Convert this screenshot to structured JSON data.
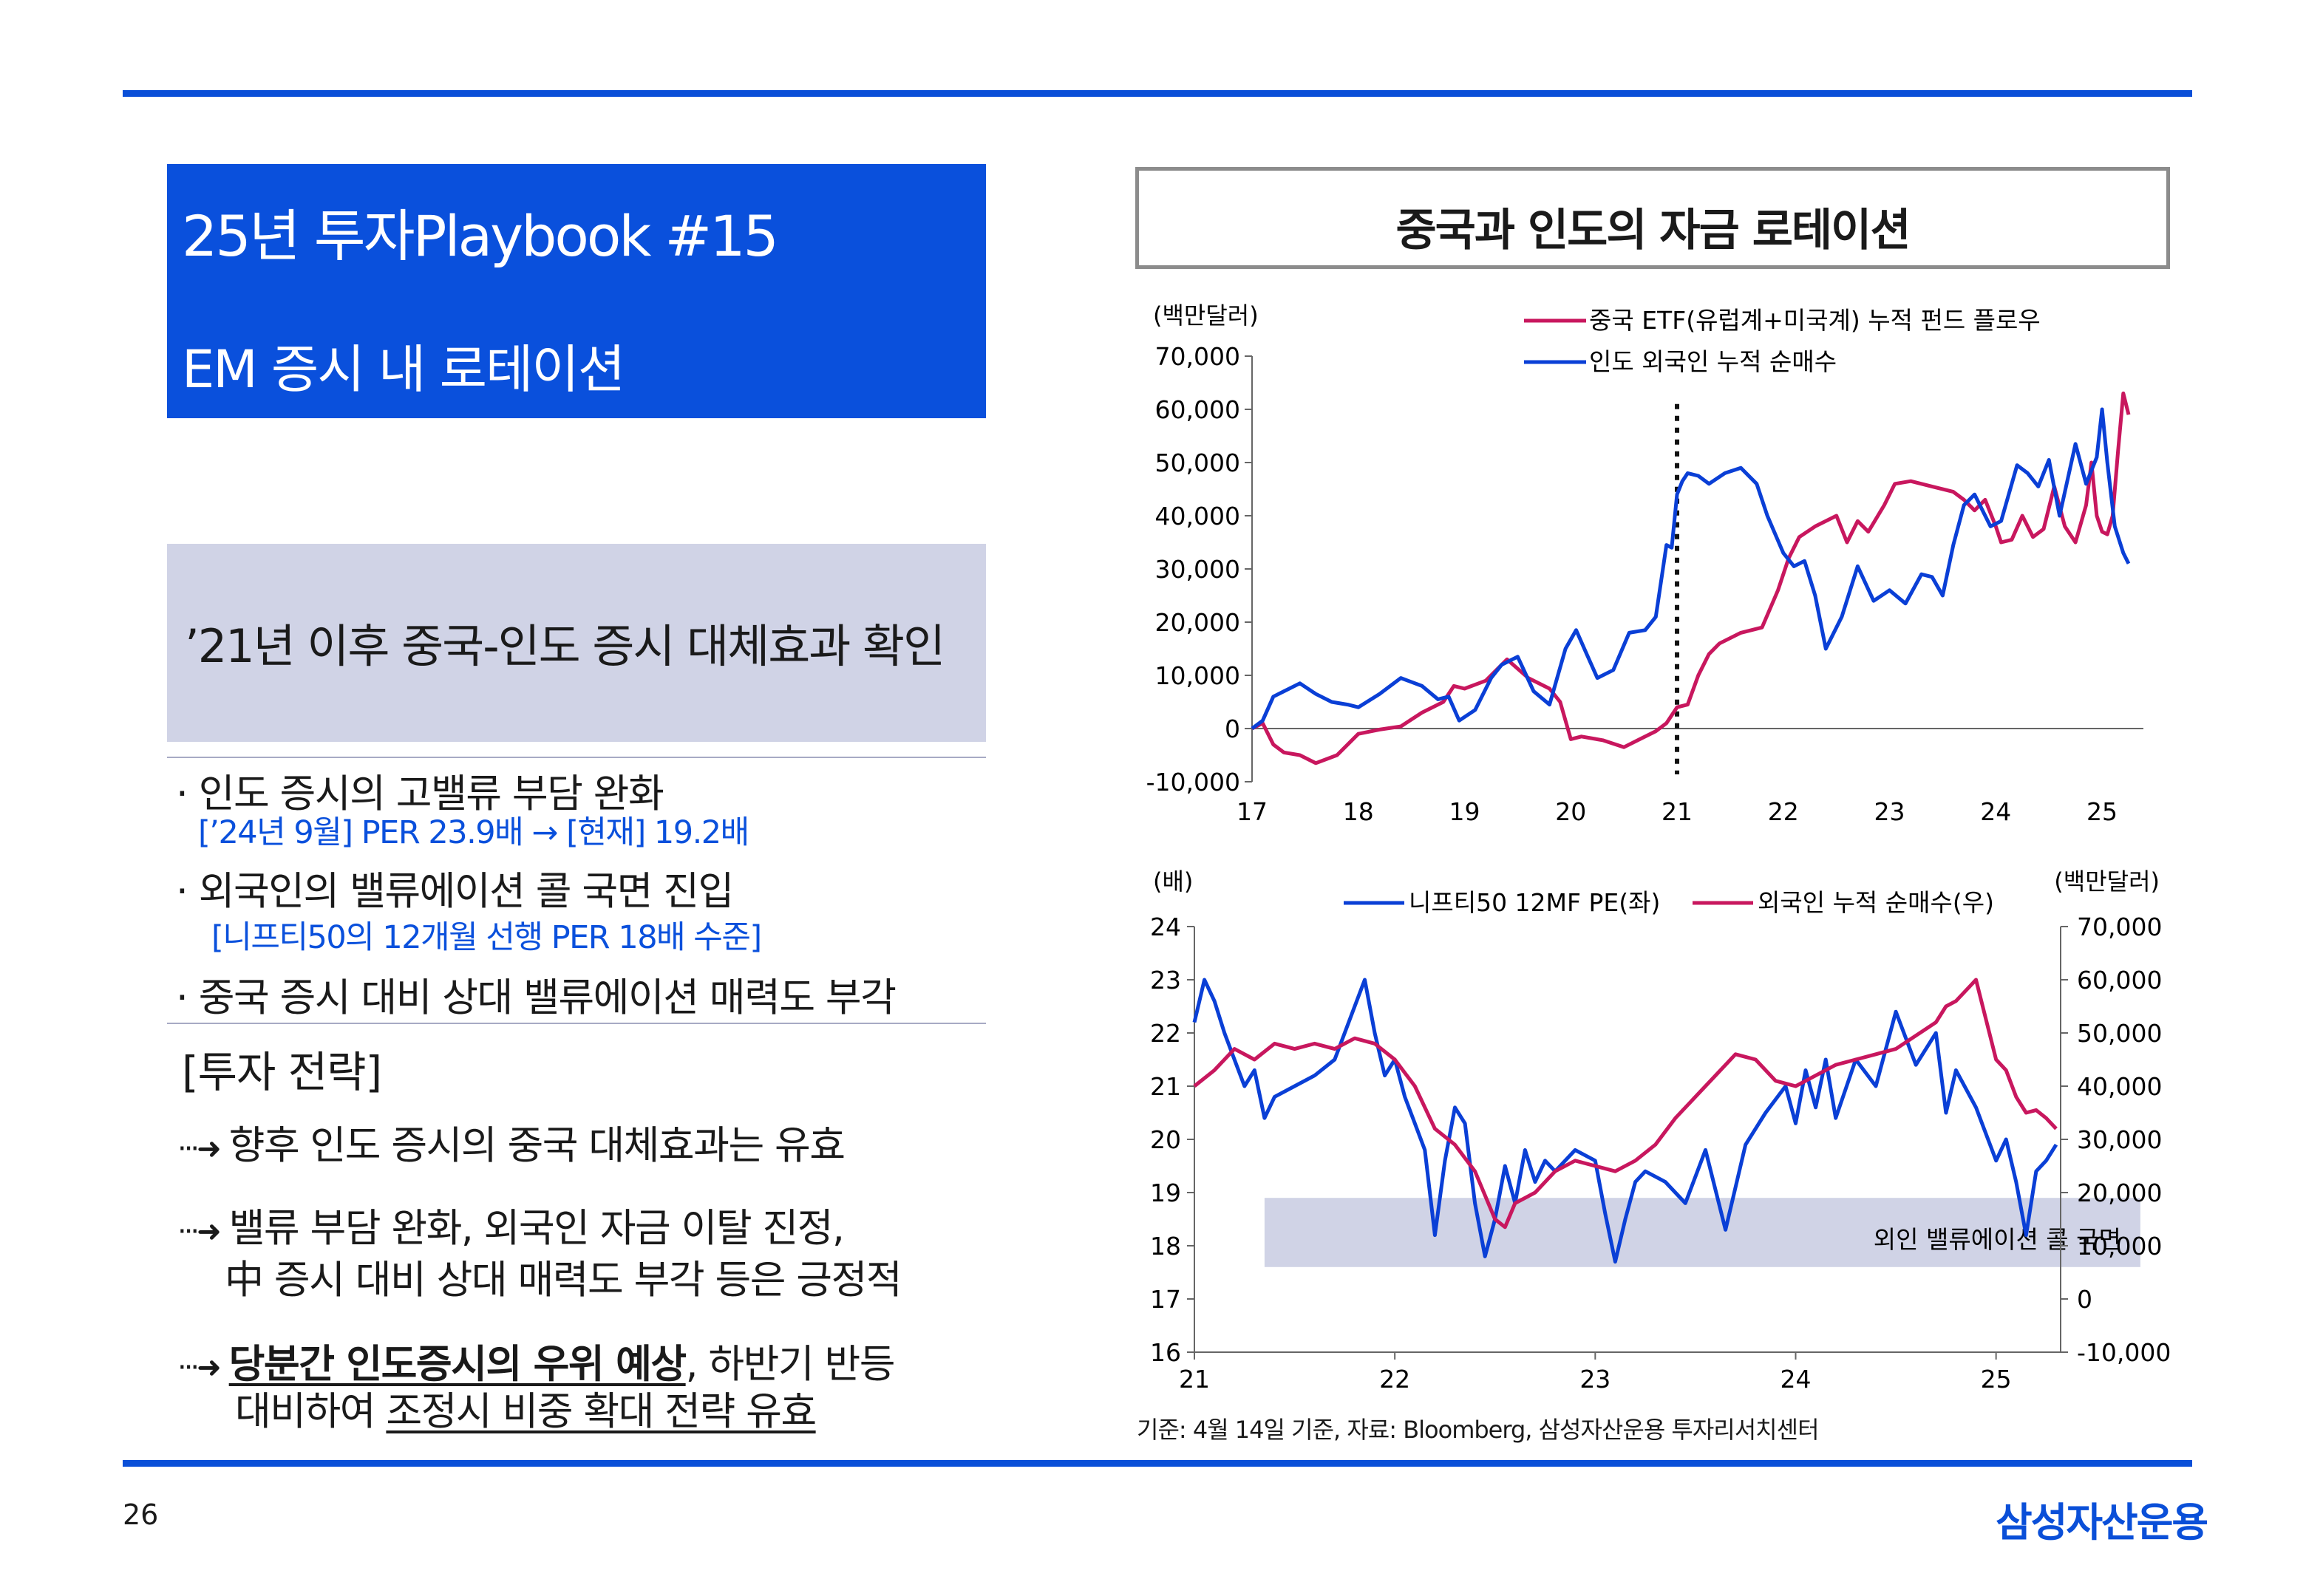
{
  "page_number": "26",
  "brand": "삼성자산운용",
  "colors": {
    "blue": "#0a50dc",
    "line_blue": "#0a3fd6",
    "line_red": "#c8175e",
    "band": "#d0d3e6"
  },
  "header": {
    "title_line1": "25년 투자Playbook #15",
    "title_line2": "EM 증시 내 로테이션"
  },
  "subtitle": "’21년 이후 중국-인도 증시 대체효과 확인",
  "bullets": [
    {
      "text": "· 인도 증시의 고밸류 부담 완화",
      "detail": "[’24년 9월] PER 23.9배 → [현재] 19.2배"
    },
    {
      "text": "· 외국인의 밸류에이션 콜 국면 진입",
      "detail": "[니프티50의 12개월 선행 PER 18배 수준]"
    },
    {
      "text": "· 중국 증시 대비 상대 밸류에이션 매력도 부각",
      "detail": ""
    }
  ],
  "strategy": {
    "heading": "[투자 전략]",
    "items": [
      {
        "arrow": "···➜",
        "text": "향후 인도 증시의 중국 대체효과는 유효"
      },
      {
        "arrow": "···➜",
        "line1": "밸류 부담 완화, 외국인 자금 이탈 진정,",
        "line2": "中 증시 대비 상대 매력도 부각 등은 긍정적"
      },
      {
        "arrow": "···➜",
        "l1_u": "당분간 인도증시의 우위 예상",
        "l1_rest": ", 하반기 반등",
        "l2_pre": "대비하여 ",
        "l2_u": "조정시 비중 확대 전략 유효"
      }
    ]
  },
  "chart_section_title": "중국과 인도의 자금 로테이션",
  "footer_note": "기준: 4월 14일 기준, 자료: Bloomberg, 삼성자산운용 투자리서치센터",
  "chart_data": [
    {
      "type": "line",
      "title": "중국과 인도의 자금 로테이션",
      "ylabel": "(백만달러)",
      "ylim": [
        -10000,
        70000
      ],
      "yticks": [
        "70,000",
        "60,000",
        "50,000",
        "40,000",
        "30,000",
        "20,000",
        "10,000",
        "0",
        "-10,000"
      ],
      "ytick_values": [
        70000,
        60000,
        50000,
        40000,
        30000,
        20000,
        10000,
        0,
        -10000
      ],
      "xlim": [
        17,
        25.25
      ],
      "xticks": [
        "17",
        "18",
        "19",
        "20",
        "21",
        "22",
        "23",
        "24",
        "25"
      ],
      "xtick_values": [
        17,
        18,
        19,
        20,
        21,
        22,
        23,
        24,
        25
      ],
      "vline_x": 21,
      "legend_position": "top-right",
      "series": [
        {
          "name": "중국 ETF(유럽계+미국계) 누적 펀드 플로우",
          "color": "#c8175e",
          "x": [
            17.0,
            17.1,
            17.2,
            17.3,
            17.45,
            17.6,
            17.8,
            18.0,
            18.2,
            18.4,
            18.6,
            18.8,
            18.9,
            19.0,
            19.2,
            19.4,
            19.6,
            19.8,
            19.9,
            20.0,
            20.1,
            20.3,
            20.5,
            20.65,
            20.8,
            20.9,
            21.0,
            21.1,
            21.2,
            21.3,
            21.4,
            21.6,
            21.8,
            21.95,
            22.05,
            22.15,
            22.3,
            22.5,
            22.6,
            22.7,
            22.8,
            22.95,
            23.05,
            23.2,
            23.4,
            23.6,
            23.7,
            23.8,
            23.9,
            24.0,
            24.05,
            24.15,
            24.25,
            24.35,
            24.45,
            24.55,
            24.65,
            24.75,
            24.85,
            24.9,
            24.95,
            25.0,
            25.05,
            25.1,
            25.15,
            25.2,
            25.25
          ],
          "y": [
            0,
            1000,
            -3000,
            -4500,
            -5000,
            -6500,
            -5000,
            -1000,
            -200,
            400,
            3000,
            5000,
            8000,
            7500,
            9000,
            13000,
            9500,
            7500,
            5000,
            -2000,
            -1500,
            -2200,
            -3500,
            -2000,
            -500,
            1000,
            4000,
            4500,
            10000,
            14000,
            16000,
            18000,
            19000,
            26000,
            32000,
            36000,
            38000,
            40000,
            35000,
            39000,
            37000,
            42000,
            46000,
            46500,
            45500,
            44500,
            43000,
            41000,
            43000,
            38000,
            35000,
            35500,
            40000,
            36000,
            37500,
            45500,
            38000,
            35000,
            42000,
            50000,
            40000,
            37000,
            36500,
            40000,
            52000,
            63000,
            59000
          ]
        },
        {
          "name": "인도 외국인 누적 순매수",
          "color": "#0a3fd6",
          "x": [
            17.0,
            17.1,
            17.2,
            17.3,
            17.45,
            17.6,
            17.75,
            17.9,
            18.0,
            18.2,
            18.4,
            18.6,
            18.75,
            18.85,
            18.95,
            19.1,
            19.25,
            19.35,
            19.5,
            19.65,
            19.8,
            19.95,
            20.05,
            20.15,
            20.25,
            20.4,
            20.55,
            20.7,
            20.8,
            20.9,
            20.95,
            21.0,
            21.05,
            21.1,
            21.2,
            21.3,
            21.45,
            21.6,
            21.75,
            21.85,
            22.0,
            22.1,
            22.2,
            22.3,
            22.4,
            22.55,
            22.7,
            22.85,
            23.0,
            23.15,
            23.3,
            23.4,
            23.5,
            23.6,
            23.7,
            23.8,
            23.95,
            24.05,
            24.2,
            24.3,
            24.4,
            24.5,
            24.6,
            24.75,
            24.85,
            24.95,
            25.0,
            25.05,
            25.12,
            25.2,
            25.25
          ],
          "y": [
            0,
            1500,
            6000,
            7000,
            8500,
            6500,
            5000,
            4500,
            4000,
            6500,
            9500,
            8000,
            5500,
            6000,
            1500,
            3500,
            9500,
            12000,
            13500,
            7000,
            4500,
            15000,
            18500,
            14000,
            9500,
            11000,
            18000,
            18500,
            21000,
            34500,
            34000,
            44000,
            46500,
            48000,
            47500,
            46000,
            48000,
            49000,
            46000,
            40000,
            33000,
            30500,
            31500,
            25000,
            15000,
            21000,
            30500,
            24000,
            26000,
            23500,
            29000,
            28500,
            25000,
            34500,
            42000,
            44000,
            38000,
            39000,
            49500,
            48000,
            45500,
            50500,
            40000,
            53500,
            46000,
            51000,
            60000,
            50000,
            38000,
            33000,
            31000
          ]
        }
      ]
    },
    {
      "type": "line",
      "ylabel_left": "(배)",
      "ylabel_right": "(백만달러)",
      "ylim_left": [
        16,
        24
      ],
      "yticks_left": [
        "24",
        "23",
        "22",
        "21",
        "20",
        "19",
        "18",
        "17",
        "16"
      ],
      "ytick_values_left": [
        24,
        23,
        22,
        21,
        20,
        19,
        18,
        17,
        16
      ],
      "ylim_right": [
        -10000,
        70000
      ],
      "yticks_right": [
        "70,000",
        "60,000",
        "50,000",
        "40,000",
        "30,000",
        "20,000",
        "10,000",
        "0",
        "-10,000"
      ],
      "ytick_values_right": [
        70000,
        60000,
        50000,
        40000,
        30000,
        20000,
        10000,
        0,
        -10000
      ],
      "xlim": [
        21,
        25.3
      ],
      "xticks": [
        "21",
        "22",
        "23",
        "24",
        "25"
      ],
      "xtick_values": [
        21,
        22,
        23,
        24,
        25
      ],
      "shaded_band": {
        "x_from": 21.35,
        "x_to": 25.72,
        "y_from": 17.6,
        "y_to": 18.9,
        "label": "외인 밸류에이션 콜 국면"
      },
      "legend_position": "top-center",
      "series": [
        {
          "name": "니프티50 12MF PE(좌)",
          "axis": "left",
          "color": "#0a3fd6",
          "x": [
            21.0,
            21.05,
            21.1,
            21.15,
            21.2,
            21.25,
            21.3,
            21.35,
            21.4,
            21.5,
            21.6,
            21.7,
            21.8,
            21.85,
            21.9,
            21.95,
            22.0,
            22.05,
            22.1,
            22.15,
            22.2,
            22.25,
            22.3,
            22.35,
            22.4,
            22.45,
            22.5,
            22.55,
            22.6,
            22.65,
            22.7,
            22.75,
            22.8,
            22.9,
            23.0,
            23.05,
            23.1,
            23.15,
            23.2,
            23.25,
            23.35,
            23.45,
            23.55,
            23.65,
            23.75,
            23.85,
            23.95,
            24.0,
            24.05,
            24.1,
            24.15,
            24.2,
            24.3,
            24.4,
            24.5,
            24.6,
            24.7,
            24.75,
            24.8,
            24.9,
            25.0,
            25.05,
            25.1,
            25.15,
            25.2,
            25.25,
            25.3
          ],
          "y": [
            22.2,
            23.0,
            22.6,
            22.0,
            21.5,
            21.0,
            21.3,
            20.4,
            20.8,
            21.0,
            21.2,
            21.5,
            22.5,
            23.0,
            22.0,
            21.2,
            21.5,
            20.8,
            20.3,
            19.8,
            18.2,
            19.6,
            20.6,
            20.3,
            18.8,
            17.8,
            18.5,
            19.5,
            18.8,
            19.8,
            19.2,
            19.6,
            19.4,
            19.8,
            19.6,
            18.6,
            17.7,
            18.5,
            19.2,
            19.4,
            19.2,
            18.8,
            19.8,
            18.3,
            19.9,
            20.5,
            21.0,
            20.3,
            21.3,
            20.6,
            21.5,
            20.4,
            21.5,
            21.0,
            22.4,
            21.4,
            22.0,
            20.5,
            21.3,
            20.6,
            19.6,
            20.0,
            19.2,
            18.2,
            19.4,
            19.6,
            19.9
          ]
        },
        {
          "name": "외국인 누적 순매수(우)",
          "axis": "right",
          "color": "#c8175e",
          "x": [
            21.0,
            21.1,
            21.2,
            21.3,
            21.4,
            21.5,
            21.6,
            21.7,
            21.8,
            21.9,
            22.0,
            22.1,
            22.2,
            22.3,
            22.4,
            22.5,
            22.55,
            22.6,
            22.7,
            22.8,
            22.9,
            23.0,
            23.1,
            23.2,
            23.3,
            23.4,
            23.5,
            23.6,
            23.7,
            23.8,
            23.9,
            24.0,
            24.1,
            24.2,
            24.3,
            24.4,
            24.5,
            24.6,
            24.7,
            24.75,
            24.8,
            24.9,
            25.0,
            25.05,
            25.1,
            25.15,
            25.2,
            25.25,
            25.3
          ],
          "y": [
            40000,
            43000,
            47000,
            45000,
            48000,
            47000,
            48000,
            47000,
            49000,
            48000,
            45000,
            40000,
            32000,
            29000,
            24000,
            15000,
            13500,
            18000,
            20000,
            24000,
            26000,
            25000,
            24000,
            26000,
            29000,
            34000,
            38000,
            42000,
            46000,
            45000,
            41000,
            40000,
            42000,
            44000,
            45000,
            46000,
            47000,
            49500,
            52000,
            55000,
            56000,
            60000,
            45000,
            43000,
            38000,
            35000,
            35500,
            34000,
            32000
          ]
        }
      ]
    }
  ]
}
